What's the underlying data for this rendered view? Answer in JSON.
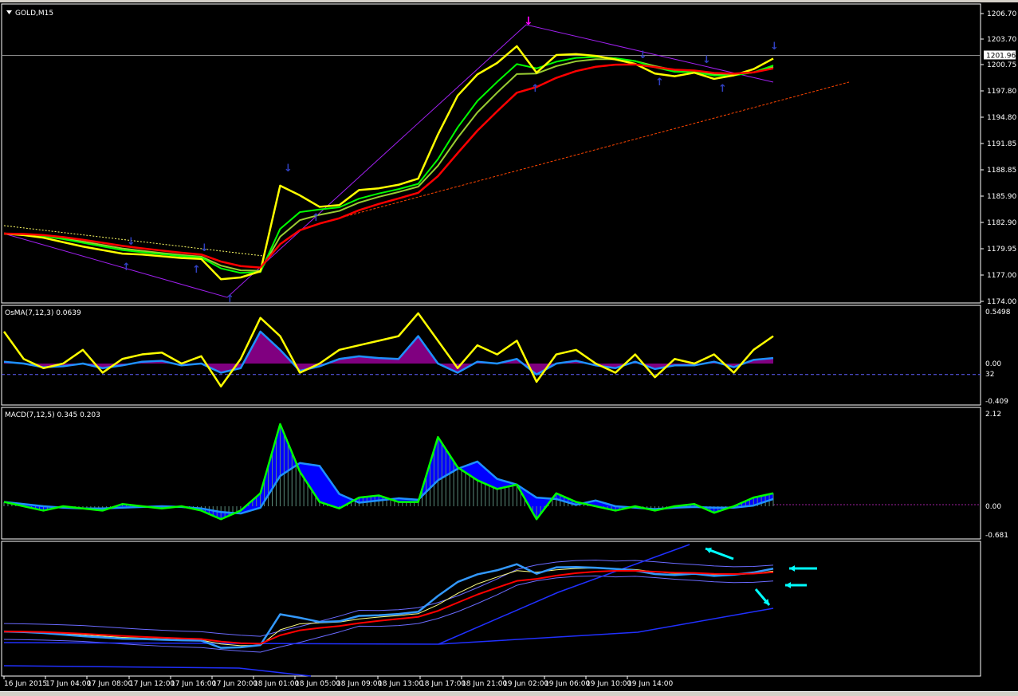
{
  "window": {
    "symbol_label": "GOLD,M15",
    "menu_icon": "triangle-down-icon"
  },
  "colors": {
    "background": "#000000",
    "price": "#ffff00",
    "ma_fast": "#00ff00",
    "ma_mid": "#9acd32",
    "ma_slow": "#ff0000",
    "osma_hist": "#800080",
    "osma_signal": "#1e90ff",
    "macd_line": "#00ff00",
    "macd_fill": "#0000ff",
    "macd_hist": "#2f4f4f",
    "band": "#6a6aff",
    "arrow": "#00ffff",
    "trend": "#ff4500",
    "channel": "#a020f0"
  },
  "price_axis": {
    "ticks": [
      "1206.70",
      "1203.70",
      "1200.75",
      "1197.80",
      "1194.80",
      "1191.85",
      "1188.85",
      "1185.90",
      "1182.90",
      "1179.95",
      "1177.00",
      "1174.00"
    ],
    "current": "1201.96"
  },
  "time_axis": {
    "ticks": [
      "16 Jun 2015",
      "17 Jun 04:00",
      "17 Jun 08:00",
      "17 Jun 12:00",
      "17 Jun 16:00",
      "17 Jun 20:00",
      "18 Jun 01:00",
      "18 Jun 05:00",
      "18 Jun 09:00",
      "18 Jun 13:00",
      "18 Jun 17:00",
      "18 Jun 21:00",
      "19 Jun 02:00",
      "19 Jun 06:00",
      "19 Jun 10:00",
      "19 Jun 14:00"
    ]
  },
  "osma": {
    "label": "OsMA(7,12,3) 0.0639",
    "ticks": [
      "0.5498",
      "0.00",
      "32",
      "-0.409"
    ]
  },
  "macd": {
    "label": "MACD(7,12,5) 0.345 0.203",
    "ticks": [
      "2.12",
      "0.00",
      "-0.681"
    ]
  },
  "chart_data": [
    {
      "type": "line",
      "name": "GOLD,M15",
      "ylim": [
        1174.0,
        1206.7
      ],
      "current": 1201.96,
      "values": [
        1181.77,
        1181.6,
        1181.3,
        1180.8,
        1180.3,
        1179.9,
        1179.5,
        1179.4,
        1179.2,
        1179.0,
        1178.9,
        1176.6,
        1176.8,
        1177.5,
        1187.2,
        1186.1,
        1184.8,
        1185.0,
        1186.7,
        1186.9,
        1187.3,
        1188.0,
        1193.0,
        1197.4,
        1199.8,
        1201.1,
        1203.0,
        1200.0,
        1202.0,
        1202.1,
        1201.9,
        1201.5,
        1201.0,
        1199.9,
        1199.6,
        1200.0,
        1199.3,
        1199.7,
        1200.4,
        1201.6
      ]
    },
    {
      "type": "line",
      "name": "OsMA(7,12,3)",
      "ylim": [
        -0.409,
        0.5498
      ],
      "level": -0.12,
      "values": [
        0.35,
        0.05,
        -0.05,
        0.0,
        0.15,
        -0.1,
        0.05,
        0.1,
        0.12,
        0.0,
        0.08,
        -0.25,
        0.05,
        0.5,
        0.3,
        -0.1,
        0.0,
        0.15,
        0.2,
        0.25,
        0.3,
        0.55,
        0.25,
        -0.05,
        0.2,
        0.1,
        0.25,
        -0.2,
        0.1,
        0.15,
        0.0,
        -0.1,
        0.1,
        -0.15,
        0.05,
        0.0,
        0.1,
        -0.1,
        0.15,
        0.3
      ],
      "histogram": [
        0.02,
        0.0,
        -0.04,
        -0.03,
        0.0,
        -0.05,
        -0.02,
        0.02,
        0.03,
        -0.02,
        0.0,
        -0.1,
        -0.05,
        0.35,
        0.15,
        -0.08,
        -0.03,
        0.05,
        0.08,
        0.06,
        0.05,
        0.3,
        0.0,
        -0.1,
        0.02,
        0.0,
        0.05,
        -0.12,
        0.0,
        0.03,
        -0.02,
        -0.05,
        0.02,
        -0.06,
        -0.02,
        -0.02,
        0.02,
        -0.04,
        0.04,
        0.06
      ]
    },
    {
      "type": "line",
      "name": "MACD(7,12,5)",
      "ylim": [
        -0.681,
        2.12
      ],
      "values": [
        0.1,
        0.0,
        -0.1,
        0.0,
        -0.05,
        -0.1,
        0.05,
        0.0,
        -0.05,
        0.0,
        -0.1,
        -0.3,
        -0.1,
        0.3,
        1.9,
        0.8,
        0.1,
        -0.05,
        0.2,
        0.25,
        0.1,
        0.1,
        1.6,
        0.9,
        0.6,
        0.4,
        0.5,
        -0.3,
        0.3,
        0.1,
        0.0,
        -0.1,
        0.0,
        -0.1,
        0.0,
        0.05,
        -0.15,
        0.0,
        0.2,
        0.3
      ]
    }
  ]
}
